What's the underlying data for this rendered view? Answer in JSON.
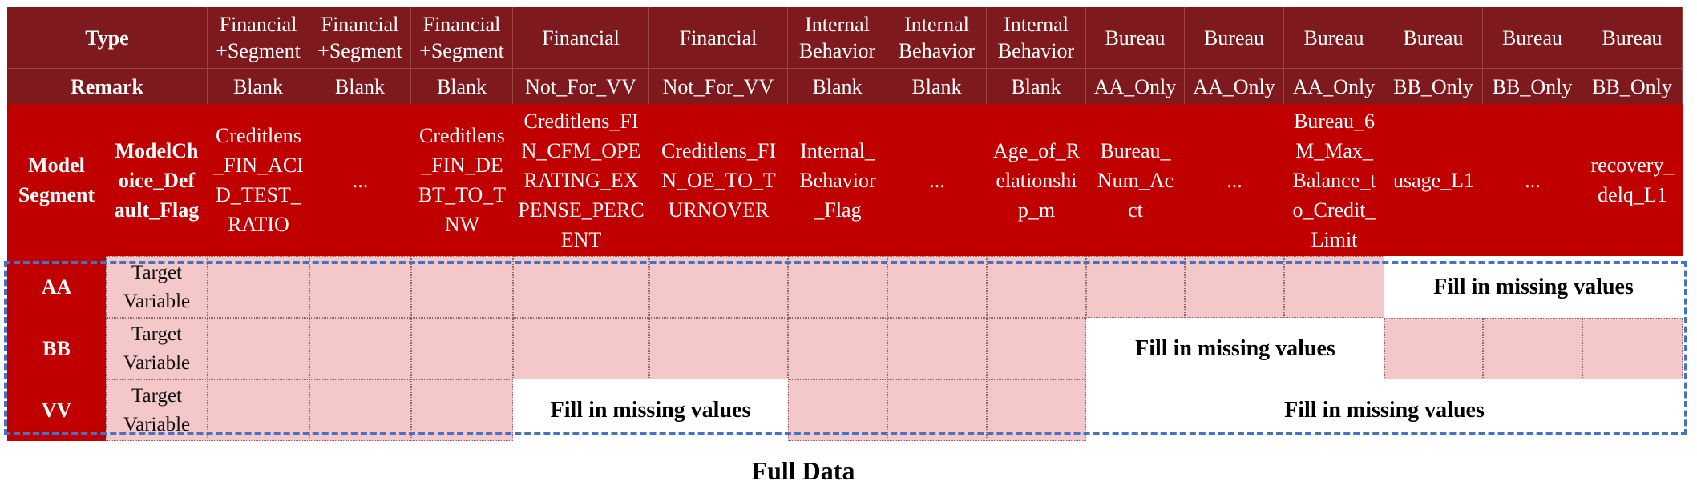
{
  "header": {
    "row_labels": {
      "type": "Type",
      "remark": "Remark",
      "model_segment": "Model\nSegment",
      "flag": "ModelCh\noice_Def\nault_Flag"
    }
  },
  "columns": [
    {
      "type": "Financial\n+Segment",
      "remark": "Blank",
      "variable": "Creditlens\n_FIN_ACI\nD_TEST_\nRATIO"
    },
    {
      "type": "Financial\n+Segment",
      "remark": "Blank",
      "variable": "..."
    },
    {
      "type": "Financial\n+Segment",
      "remark": "Blank",
      "variable": "Creditlens\n_FIN_DE\nBT_TO_T\nNW"
    },
    {
      "type": "Financial",
      "remark": "Not_For_VV",
      "variable": "Creditlens_FI\nN_CFM_OPE\nRATING_EX\nPENSE_PERC\nENT"
    },
    {
      "type": "Financial",
      "remark": "Not_For_VV",
      "variable": "Creditlens_FI\nN_OE_TO_T\nURNOVER"
    },
    {
      "type": "Internal\nBehavior",
      "remark": "Blank",
      "variable": "Internal_\nBehavior\n_Flag"
    },
    {
      "type": "Internal\nBehavior",
      "remark": "Blank",
      "variable": "..."
    },
    {
      "type": "Internal\nBehavior",
      "remark": "Blank",
      "variable": "Age_of_R\nelationshi\np_m"
    },
    {
      "type": "Bureau",
      "remark": "AA_Only",
      "variable": "Bureau_\nNum_Ac\nct"
    },
    {
      "type": "Bureau",
      "remark": "AA_Only",
      "variable": "..."
    },
    {
      "type": "Bureau",
      "remark": "AA_Only",
      "variable": "Bureau_6\nM_Max_\nBalance_t\no_Credit_\nLimit"
    },
    {
      "type": "Bureau",
      "remark": "BB_Only",
      "variable": "usage_L1"
    },
    {
      "type": "Bureau",
      "remark": "BB_Only",
      "variable": "..."
    },
    {
      "type": "Bureau",
      "remark": "BB_Only",
      "variable": "recovery_\ndelq_L1"
    }
  ],
  "segments": [
    {
      "name": "AA",
      "target": "Target\nVariable",
      "data_mask": [
        1,
        1,
        1,
        1,
        1,
        1,
        1,
        1,
        1,
        1,
        1,
        0,
        0,
        0
      ]
    },
    {
      "name": "BB",
      "target": "Target\nVariable",
      "data_mask": [
        1,
        1,
        1,
        1,
        1,
        1,
        1,
        1,
        0,
        0,
        0,
        1,
        1,
        1
      ]
    },
    {
      "name": "VV",
      "target": "Target\nVariable",
      "data_mask": [
        1,
        1,
        1,
        0,
        0,
        1,
        1,
        1,
        0,
        0,
        0,
        0,
        0,
        0
      ]
    }
  ],
  "missing_label": "Fill in missing values",
  "caption": "Full Data",
  "colors": {
    "dark_red": "#7e1a1e",
    "red": "#c00000",
    "pink": "#f4c7c9",
    "dashed_frame": "#4472c4"
  }
}
